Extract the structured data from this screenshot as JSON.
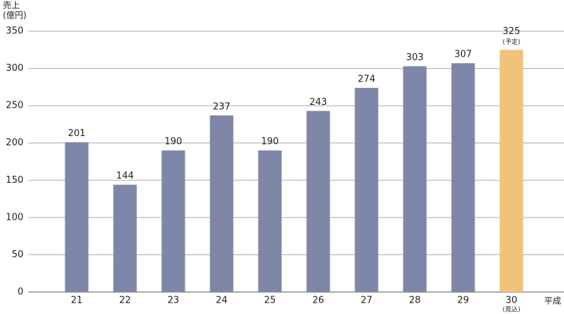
{
  "chart_data": {
    "type": "bar",
    "ylabel_lines": [
      "売上",
      "(億円)"
    ],
    "xlabel": "平成",
    "categories": [
      "21",
      "22",
      "23",
      "24",
      "25",
      "26",
      "27",
      "28",
      "29",
      "30"
    ],
    "category_notes": [
      null,
      null,
      null,
      null,
      null,
      null,
      null,
      null,
      null,
      "(見込)"
    ],
    "values": [
      201,
      144,
      190,
      237,
      190,
      243,
      274,
      303,
      307,
      325
    ],
    "value_notes": [
      null,
      null,
      null,
      null,
      null,
      null,
      null,
      null,
      null,
      "(予定)"
    ],
    "colors": [
      "#7f87a8",
      "#7f87a8",
      "#7f87a8",
      "#7f87a8",
      "#7f87a8",
      "#7f87a8",
      "#7f87a8",
      "#7f87a8",
      "#7f87a8",
      "#f2c27a"
    ],
    "ylim": [
      0,
      350
    ],
    "yticks": [
      0,
      50,
      100,
      150,
      200,
      250,
      300,
      350
    ],
    "grid": true
  }
}
